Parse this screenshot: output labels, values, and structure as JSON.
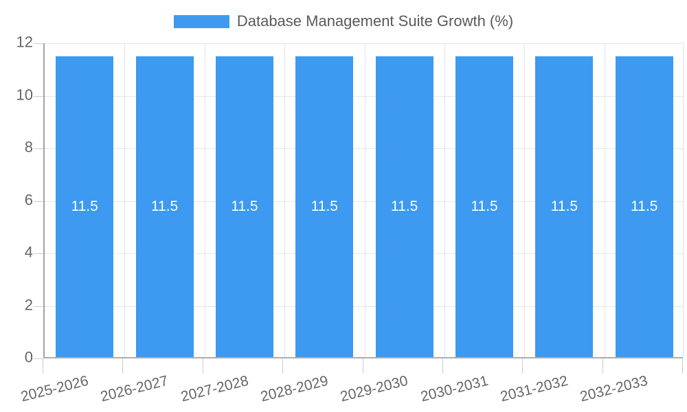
{
  "chart_data": {
    "type": "bar",
    "title": "Database Management Suite Growth (%)",
    "categories": [
      "2025-2026",
      "2026-2027",
      "2027-2028",
      "2028-2029",
      "2029-2030",
      "2030-2031",
      "2031-2032",
      "2032-2033"
    ],
    "values": [
      11.5,
      11.5,
      11.5,
      11.5,
      11.5,
      11.5,
      11.5,
      11.5
    ],
    "value_labels": [
      "11.5",
      "11.5",
      "11.5",
      "11.5",
      "11.5",
      "11.5",
      "11.5",
      "11.5"
    ],
    "xlabel": "",
    "ylabel": "",
    "ylim": [
      0,
      12
    ],
    "yticks": [
      0,
      2,
      4,
      6,
      8,
      10,
      12
    ],
    "ytick_labels": [
      "0",
      "2",
      "4",
      "6",
      "8",
      "10",
      "12"
    ],
    "grid": true,
    "legend_position": "top",
    "bar_color": "#3d9af0",
    "bar_value_label_color": "#ffffff"
  },
  "colors": {
    "accent_blue": "#3d9af0",
    "grid_line": "#e6e6e6",
    "axis_line": "#a3a3a3",
    "tick_text": "#666666",
    "legend_text": "#595959",
    "background": "#ffffff"
  }
}
